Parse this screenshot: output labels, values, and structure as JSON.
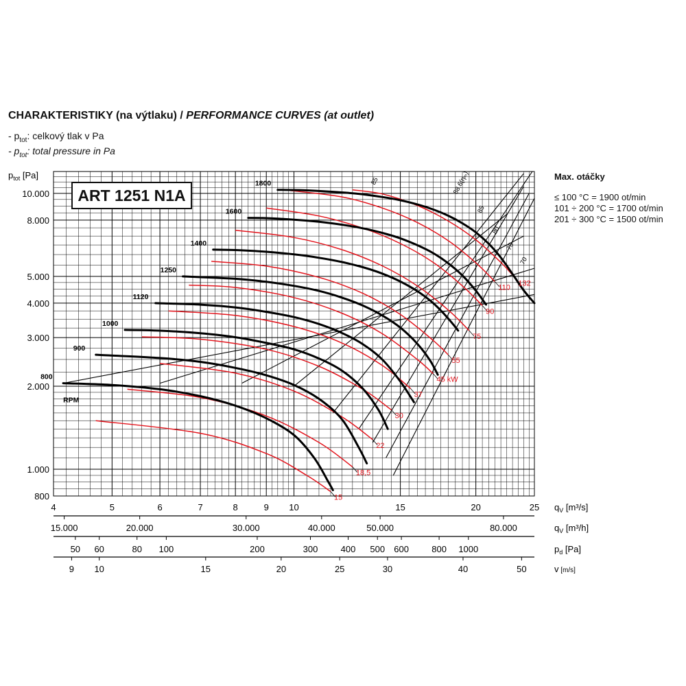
{
  "header": {
    "title_cz": "CHARAKTERISTIKY (na výtlaku) / ",
    "title_en": "PERFORMANCE CURVES (at outlet)",
    "note1_prefix": "- p",
    "note1_sub": "tot",
    "note1_text": ": celkový tlak v Pa",
    "note2_prefix": "- p",
    "note2_sub": "tot",
    "note2_text": ": total pressure in Pa"
  },
  "model": "ART 1251 N1A",
  "max_speed": {
    "heading": "Max. otáčky",
    "lines": [
      "≤ 100 °C = 1900 ot/min",
      "101 ÷ 200 °C = 1700 ot/min",
      "201 ÷ 300 °C = 1500 ot/min"
    ]
  },
  "chart_data": {
    "type": "line",
    "title": "CHARAKTERISTIKY (na výtlaku) / PERFORMANCE CURVES (at outlet)",
    "x_scale": "log",
    "y_scale": "log",
    "xlim": [
      4,
      25
    ],
    "ylim": [
      800,
      12000
    ],
    "ylabel": "ptot [Pa]",
    "y_ticks": [
      {
        "v": 800,
        "label": "800"
      },
      {
        "v": 1000,
        "label": "1.000"
      },
      {
        "v": 2000,
        "label": "2.000"
      },
      {
        "v": 3000,
        "label": "3.000"
      },
      {
        "v": 4000,
        "label": "4.000"
      },
      {
        "v": 5000,
        "label": "5.000"
      },
      {
        "v": 8000,
        "label": "8.000"
      },
      {
        "v": 10000,
        "label": "10.000"
      }
    ],
    "x_axes": [
      {
        "name": "qv [m³/s]",
        "unit_main": "q",
        "unit_sub": "V",
        "unit_rest": " [m³/s]",
        "ticks": [
          {
            "v": 4,
            "label": "4"
          },
          {
            "v": 5,
            "label": "5"
          },
          {
            "v": 6,
            "label": "6"
          },
          {
            "v": 7,
            "label": "7"
          },
          {
            "v": 8,
            "label": "8"
          },
          {
            "v": 9,
            "label": "9"
          },
          {
            "v": 10,
            "label": "10"
          },
          {
            "v": 15,
            "label": "15"
          },
          {
            "v": 20,
            "label": "20"
          },
          {
            "v": 25,
            "label": "25"
          }
        ]
      },
      {
        "name": "qv [m³/h]",
        "unit_main": "q",
        "unit_sub": "V",
        "unit_rest": " [m³/h]",
        "ticks": [
          {
            "v": 15000,
            "label": "15.000"
          },
          {
            "v": 20000,
            "label": "20.000"
          },
          {
            "v": 30000,
            "label": "30.000"
          },
          {
            "v": 40000,
            "label": "40.000"
          },
          {
            "v": 50000,
            "label": "50.000"
          },
          {
            "v": 80000,
            "label": "80.000"
          }
        ]
      },
      {
        "name": "pd [Pa]",
        "unit_main": "p",
        "unit_sub": "d",
        "unit_rest": " [Pa]",
        "ticks": [
          {
            "v": 50,
            "label": "50"
          },
          {
            "v": 60,
            "label": "60"
          },
          {
            "v": 80,
            "label": "80"
          },
          {
            "v": 100,
            "label": "100"
          },
          {
            "v": 200,
            "label": "200"
          },
          {
            "v": 300,
            "label": "300"
          },
          {
            "v": 400,
            "label": "400"
          },
          {
            "v": 500,
            "label": "500"
          },
          {
            "v": 600,
            "label": "600"
          },
          {
            "v": 800,
            "label": "800"
          },
          {
            "v": 1000,
            "label": "1000"
          }
        ]
      },
      {
        "name": "v [m/s]",
        "unit_main": "v",
        "unit_sub": "",
        "unit_rest": " [m/s]",
        "ticks": [
          {
            "v": 9,
            "label": "9"
          },
          {
            "v": 10,
            "label": "10"
          },
          {
            "v": 15,
            "label": "15"
          },
          {
            "v": 20,
            "label": "20"
          },
          {
            "v": 25,
            "label": "25"
          },
          {
            "v": 30,
            "label": "30"
          },
          {
            "v": 40,
            "label": "40"
          },
          {
            "v": 50,
            "label": "50"
          }
        ]
      }
    ],
    "rpm_unit": "RPM",
    "rpm_curves": [
      {
        "rpm": "800",
        "points": [
          [
            4.15,
            2050
          ],
          [
            5.0,
            2020
          ],
          [
            6.0,
            1950
          ],
          [
            7.0,
            1840
          ],
          [
            8.0,
            1700
          ],
          [
            9.0,
            1530
          ],
          [
            10.0,
            1330
          ],
          [
            10.8,
            1100
          ],
          [
            11.4,
            900
          ],
          [
            11.6,
            840
          ]
        ]
      },
      {
        "rpm": "900",
        "points": [
          [
            4.7,
            2600
          ],
          [
            6.0,
            2530
          ],
          [
            7.0,
            2450
          ],
          [
            8.0,
            2330
          ],
          [
            9.0,
            2190
          ],
          [
            10.0,
            2020
          ],
          [
            11.0,
            1800
          ],
          [
            12.0,
            1520
          ],
          [
            12.8,
            1200
          ],
          [
            13.2,
            1050
          ]
        ]
      },
      {
        "rpm": "1000",
        "points": [
          [
            5.25,
            3200
          ],
          [
            6.0,
            3180
          ],
          [
            7.0,
            3110
          ],
          [
            8.0,
            3010
          ],
          [
            9.0,
            2870
          ],
          [
            10.0,
            2720
          ],
          [
            11.0,
            2520
          ],
          [
            12.0,
            2280
          ],
          [
            13.0,
            1960
          ],
          [
            13.8,
            1640
          ],
          [
            14.3,
            1400
          ]
        ]
      },
      {
        "rpm": "1120",
        "points": [
          [
            5.9,
            4000
          ],
          [
            7.0,
            3950
          ],
          [
            8.0,
            3860
          ],
          [
            9.0,
            3720
          ],
          [
            10.0,
            3560
          ],
          [
            11.0,
            3360
          ],
          [
            12.0,
            3120
          ],
          [
            13.0,
            2840
          ],
          [
            14.0,
            2500
          ],
          [
            15.0,
            2080
          ],
          [
            15.8,
            1750
          ]
        ]
      },
      {
        "rpm": "1250",
        "points": [
          [
            6.55,
            5000
          ],
          [
            8.0,
            4900
          ],
          [
            9.0,
            4780
          ],
          [
            10.0,
            4620
          ],
          [
            11.0,
            4430
          ],
          [
            12.0,
            4190
          ],
          [
            13.0,
            3920
          ],
          [
            14.0,
            3610
          ],
          [
            15.0,
            3260
          ],
          [
            16.0,
            2850
          ],
          [
            16.8,
            2480
          ],
          [
            17.3,
            2200
          ]
        ]
      },
      {
        "rpm": "1400",
        "points": [
          [
            7.35,
            6250
          ],
          [
            8.0,
            6230
          ],
          [
            9.0,
            6140
          ],
          [
            10.0,
            6010
          ],
          [
            11.0,
            5840
          ],
          [
            12.0,
            5640
          ],
          [
            13.0,
            5400
          ],
          [
            14.0,
            5120
          ],
          [
            15.0,
            4790
          ],
          [
            16.0,
            4420
          ],
          [
            17.0,
            4000
          ],
          [
            18.0,
            3520
          ],
          [
            18.7,
            3180
          ]
        ]
      },
      {
        "rpm": "1600",
        "points": [
          [
            8.4,
            8150
          ],
          [
            9.0,
            8130
          ],
          [
            10.0,
            8030
          ],
          [
            11.0,
            7890
          ],
          [
            12.0,
            7700
          ],
          [
            13.0,
            7470
          ],
          [
            14.0,
            7190
          ],
          [
            15.0,
            6870
          ],
          [
            16.0,
            6490
          ],
          [
            17.0,
            6070
          ],
          [
            18.0,
            5580
          ],
          [
            19.0,
            5040
          ],
          [
            20.0,
            4440
          ],
          [
            20.8,
            3950
          ]
        ]
      },
      {
        "rpm": "1800",
        "points": [
          [
            9.4,
            10300
          ],
          [
            10.5,
            10250
          ],
          [
            12.0,
            10080
          ],
          [
            13.0,
            9920
          ],
          [
            14.0,
            9700
          ],
          [
            15.0,
            9440
          ],
          [
            16.0,
            9120
          ],
          [
            17.0,
            8740
          ],
          [
            18.0,
            8300
          ],
          [
            19.0,
            7790
          ],
          [
            20.0,
            7220
          ],
          [
            21.0,
            6570
          ],
          [
            22.0,
            5850
          ],
          [
            23.0,
            5100
          ],
          [
            24.0,
            4450
          ],
          [
            25.0,
            4000
          ]
        ]
      }
    ],
    "power_lines": [
      {
        "label": "15",
        "points": [
          [
            4.7,
            1500
          ],
          [
            7.0,
            1350
          ],
          [
            9.0,
            1140
          ],
          [
            10.5,
            950
          ],
          [
            11.5,
            830
          ]
        ]
      },
      {
        "label": "18,5",
        "points": [
          [
            5.3,
            1950
          ],
          [
            7.0,
            1820
          ],
          [
            9.0,
            1560
          ],
          [
            11.0,
            1250
          ],
          [
            12.5,
            1020
          ]
        ]
      },
      {
        "label": "22",
        "points": [
          [
            6.0,
            2420
          ],
          [
            8.0,
            2230
          ],
          [
            10.0,
            1920
          ],
          [
            12.0,
            1550
          ],
          [
            13.5,
            1280
          ]
        ]
      },
      {
        "label": "30",
        "points": [
          [
            5.6,
            3020
          ],
          [
            7.0,
            2960
          ],
          [
            9.0,
            2720
          ],
          [
            11.0,
            2360
          ],
          [
            13.0,
            1950
          ],
          [
            14.5,
            1640
          ]
        ]
      },
      {
        "label": "37",
        "points": [
          [
            6.2,
            3750
          ],
          [
            8.0,
            3610
          ],
          [
            10.0,
            3290
          ],
          [
            12.0,
            2870
          ],
          [
            14.0,
            2380
          ],
          [
            15.6,
            1960
          ]
        ]
      },
      {
        "label": "45 kW",
        "points": [
          [
            6.7,
            4650
          ],
          [
            8.0,
            4560
          ],
          [
            10.0,
            4190
          ],
          [
            12.0,
            3680
          ],
          [
            14.0,
            3100
          ],
          [
            16.0,
            2500
          ],
          [
            17.0,
            2220
          ]
        ]
      },
      {
        "label": "55",
        "points": [
          [
            7.3,
            5670
          ],
          [
            9.0,
            5450
          ],
          [
            11.0,
            4960
          ],
          [
            13.0,
            4340
          ],
          [
            15.0,
            3640
          ],
          [
            17.0,
            2930
          ],
          [
            18.0,
            2600
          ]
        ]
      },
      {
        "label": "75",
        "points": [
          [
            8.0,
            7350
          ],
          [
            10.0,
            6920
          ],
          [
            12.0,
            6250
          ],
          [
            14.0,
            5460
          ],
          [
            16.0,
            4620
          ],
          [
            18.0,
            3780
          ],
          [
            19.5,
            3180
          ]
        ]
      },
      {
        "label": "90",
        "points": [
          [
            9.0,
            8850
          ],
          [
            11.0,
            8280
          ],
          [
            13.0,
            7480
          ],
          [
            15.0,
            6580
          ],
          [
            17.0,
            5620
          ],
          [
            19.0,
            4620
          ],
          [
            20.5,
            3920
          ]
        ]
      },
      {
        "label": "110",
        "points": [
          [
            9.8,
            10250
          ],
          [
            12.0,
            9710
          ],
          [
            14.0,
            8850
          ],
          [
            16.0,
            7840
          ],
          [
            18.0,
            6740
          ],
          [
            20.0,
            5600
          ],
          [
            21.5,
            4790
          ]
        ]
      },
      {
        "label": "132",
        "points": [
          [
            12.5,
            10300
          ],
          [
            14.0,
            9950
          ],
          [
            16.0,
            9040
          ],
          [
            18.0,
            7940
          ],
          [
            20.0,
            6790
          ],
          [
            22.0,
            5620
          ],
          [
            23.2,
            4950
          ]
        ]
      }
    ],
    "efficiency_lines": [
      {
        "label": "70",
        "points": [
          [
            4.15,
            2050
          ],
          [
            25.0,
            4300
          ]
        ]
      },
      {
        "label": "75",
        "points": [
          [
            6.0,
            2050
          ],
          [
            25.0,
            5350
          ]
        ]
      },
      {
        "label": "80",
        "points": [
          [
            8.2,
            2050
          ],
          [
            24.0,
            7000
          ]
        ]
      },
      {
        "label": "85",
        "points": [
          [
            10.0,
            2000
          ],
          [
            22.5,
            8400
          ]
        ]
      },
      {
        "label": "88,6(ηₘ)",
        "points": [
          [
            11.6,
            1600
          ],
          [
            24.0,
            11800
          ]
        ]
      },
      {
        "label": "85",
        "points": [
          [
            12.8,
            1400
          ],
          [
            24.8,
            12100
          ]
        ]
      },
      {
        "label": "80",
        "points": [
          [
            13.5,
            1250
          ],
          [
            24.0,
            10600
          ]
        ]
      },
      {
        "label": "75",
        "points": [
          [
            14.2,
            1100
          ],
          [
            24.5,
            10000
          ]
        ]
      },
      {
        "label": "70",
        "points": [
          [
            14.6,
            950
          ],
          [
            25.0,
            9600
          ]
        ]
      }
    ],
    "eff_labels_shown": [
      {
        "label": "85",
        "at": [
          13.6,
          10700
        ]
      },
      {
        "label": "88,6(ηₘ)",
        "at": [
          18.6,
          9900
        ]
      },
      {
        "label": "85",
        "at": [
          20.4,
          8450
        ]
      },
      {
        "label": "80",
        "at": [
          21.6,
          7100
        ]
      },
      {
        "label": "75",
        "at": [
          22.8,
          6200
        ]
      },
      {
        "label": "70",
        "at": [
          24.0,
          5500
        ]
      }
    ]
  }
}
